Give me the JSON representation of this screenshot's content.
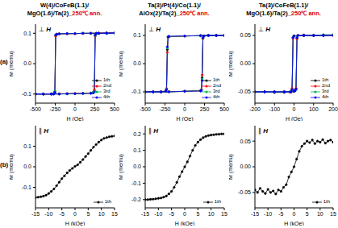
{
  "chart_data": [
    {
      "type": "line",
      "title": "W(4)/CoFeB(1.1)/\nMgO(1.6)/Ta(2)_250℃ ann.",
      "annotations": [
        "(a)",
        "⊥ H"
      ],
      "x_label": "H (Oe)",
      "y_label": "M (memu)",
      "x": [
        -500,
        -400,
        -300,
        -200,
        -100,
        0,
        100,
        200,
        230,
        245,
        255,
        270,
        300,
        400,
        500,
        400,
        300,
        200,
        100,
        0,
        -100,
        -200,
        -230,
        -245,
        -255,
        -270,
        -300,
        -400,
        -500
      ],
      "series": [
        {
          "name": "1th",
          "color": "#000000",
          "marker": "circle",
          "line_style": "solid",
          "values": [
            -0.1,
            -0.1,
            -0.1,
            -0.1,
            -0.099,
            -0.099,
            -0.098,
            -0.097,
            -0.096,
            -0.09,
            0.095,
            0.1,
            0.1,
            0.101,
            0.101,
            0.101,
            0.1,
            0.1,
            0.1,
            0.099,
            0.099,
            0.098,
            0.097,
            0.093,
            -0.095,
            -0.1,
            -0.1,
            -0.1,
            -0.1
          ]
        },
        {
          "name": "2nd",
          "color": "#ff0000",
          "marker": "circle",
          "line_style": "solid",
          "values": [
            -0.1,
            -0.1,
            -0.1,
            -0.099,
            -0.099,
            -0.098,
            -0.098,
            -0.097,
            -0.095,
            -0.085,
            0.09,
            0.1,
            0.1,
            0.1,
            0.101,
            0.101,
            0.1,
            0.1,
            0.099,
            0.099,
            0.098,
            0.098,
            0.096,
            0.09,
            -0.092,
            -0.1,
            -0.1,
            -0.1,
            -0.1
          ]
        },
        {
          "name": "3rd",
          "color": "#00b050",
          "marker": "circle",
          "line_style": "solid",
          "values": [
            -0.1,
            -0.1,
            -0.1,
            -0.1,
            -0.1,
            -0.099,
            -0.098,
            -0.097,
            -0.096,
            -0.092,
            0.092,
            0.099,
            0.1,
            0.1,
            0.1,
            0.1,
            0.1,
            0.1,
            0.1,
            0.099,
            0.099,
            0.098,
            0.097,
            0.094,
            -0.09,
            -0.099,
            -0.1,
            -0.1,
            -0.1
          ]
        },
        {
          "name": "4th",
          "color": "#0000ff",
          "marker": "circle",
          "line_style": "solid",
          "values": [
            -0.1,
            -0.1,
            -0.1,
            -0.1,
            -0.099,
            -0.099,
            -0.098,
            -0.098,
            -0.096,
            -0.093,
            0.094,
            0.1,
            0.1,
            0.1,
            0.101,
            0.1,
            0.1,
            0.1,
            0.1,
            0.099,
            0.099,
            0.098,
            0.097,
            0.095,
            -0.094,
            -0.1,
            -0.1,
            -0.1,
            -0.1
          ]
        }
      ],
      "xlim": [
        -500,
        500
      ],
      "xticks": [
        -500,
        -250,
        0,
        250,
        500
      ],
      "ylim": [
        -0.13,
        0.13
      ],
      "yticks": [
        -0.1,
        {
          "value": 0,
          "label": "0.0"
        },
        0.1
      ],
      "legend": "lower right"
    },
    {
      "type": "line",
      "title": "Ta(3)/Pt(4)/Co(1.1)/\nAlOx(2)/Ta(2)_250℃ ann.",
      "annotations": [
        "⊥ H"
      ],
      "x_label": "H (Oe)",
      "y_label": "M (memu)",
      "x": [
        -500,
        -400,
        -300,
        -200,
        0,
        200,
        210,
        220,
        230,
        240,
        300,
        400,
        500,
        400,
        300,
        200,
        0,
        -200,
        -210,
        -220,
        -230,
        -240,
        -300,
        -400,
        -500
      ],
      "series": [
        {
          "name": "1th",
          "color": "#000000",
          "marker": "circle",
          "line_style": "solid",
          "values": [
            -0.1,
            -0.1,
            -0.1,
            -0.1,
            -0.098,
            -0.096,
            -0.094,
            -0.05,
            0.09,
            0.097,
            0.1,
            0.1,
            0.1,
            0.1,
            0.1,
            0.099,
            0.098,
            0.096,
            0.094,
            0.05,
            -0.09,
            -0.097,
            -0.1,
            -0.1,
            -0.1
          ]
        },
        {
          "name": "2nd",
          "color": "#ff0000",
          "marker": "circle",
          "line_style": "solid",
          "values": [
            -0.1,
            -0.1,
            -0.1,
            -0.099,
            -0.098,
            -0.096,
            -0.093,
            -0.04,
            0.088,
            0.097,
            0.1,
            0.1,
            0.1,
            0.1,
            0.1,
            0.099,
            0.098,
            0.095,
            0.093,
            0.04,
            -0.088,
            -0.097,
            -0.1,
            -0.1,
            -0.1
          ]
        },
        {
          "name": "3rd",
          "color": "#00b050",
          "marker": "circle",
          "line_style": "solid",
          "values": [
            -0.1,
            -0.1,
            -0.1,
            -0.1,
            -0.098,
            -0.096,
            -0.094,
            -0.055,
            0.09,
            0.097,
            0.1,
            0.1,
            0.1,
            0.1,
            0.1,
            0.099,
            0.098,
            0.096,
            0.094,
            0.055,
            -0.09,
            -0.097,
            -0.1,
            -0.1,
            -0.1
          ]
        },
        {
          "name": "4th",
          "color": "#0000ff",
          "marker": "circle",
          "line_style": "solid",
          "values": [
            -0.1,
            -0.1,
            -0.1,
            -0.1,
            -0.098,
            -0.097,
            -0.095,
            -0.06,
            0.092,
            0.098,
            0.1,
            0.1,
            0.1,
            0.1,
            0.1,
            0.1,
            0.098,
            0.097,
            0.095,
            0.06,
            -0.092,
            -0.098,
            -0.1,
            -0.1,
            -0.1
          ]
        }
      ],
      "xlim": [
        -500,
        500
      ],
      "xticks": [
        -500,
        -250,
        0,
        250,
        500
      ],
      "ylim": [
        -0.14,
        0.14
      ],
      "yticks": [
        -0.1,
        {
          "value": 0,
          "label": "0.0"
        },
        0.1
      ],
      "legend": "lower right"
    },
    {
      "type": "line",
      "title": "Ta(3)/CoFeB(1.1)/\nMgO(1.6)/Ta(2)_250℃ ann.",
      "annotations": [
        "⊥ H"
      ],
      "x_label": "H (Oe)",
      "y_label": "M (memu)",
      "x": [
        -200,
        -150,
        -100,
        -50,
        0,
        5,
        10,
        15,
        20,
        50,
        100,
        150,
        200,
        150,
        100,
        50,
        0,
        -5,
        -10,
        -15,
        -20,
        -50,
        -100,
        -150,
        -200
      ],
      "series": [
        {
          "name": "1th",
          "color": "#000000",
          "marker": "circle",
          "line_style": "solid",
          "values": [
            -0.05,
            -0.05,
            -0.05,
            -0.05,
            -0.049,
            -0.048,
            -0.045,
            0.045,
            0.05,
            0.05,
            0.05,
            0.05,
            0.051,
            0.051,
            0.05,
            0.05,
            0.049,
            0.046,
            -0.045,
            -0.05,
            -0.05,
            -0.051,
            -0.051,
            -0.05,
            -0.05
          ]
        },
        {
          "name": "2nd",
          "color": "#ff0000",
          "marker": "circle",
          "line_style": "solid",
          "values": [
            -0.05,
            -0.05,
            -0.051,
            -0.05,
            -0.049,
            -0.047,
            -0.044,
            0.044,
            0.05,
            0.051,
            0.05,
            0.05,
            0.05,
            0.05,
            0.05,
            0.05,
            0.049,
            0.045,
            -0.044,
            -0.05,
            -0.051,
            -0.05,
            -0.05,
            -0.05,
            -0.05
          ]
        },
        {
          "name": "3rd",
          "color": "#00b050",
          "marker": "circle",
          "line_style": "solid",
          "values": [
            -0.05,
            -0.05,
            -0.05,
            -0.05,
            -0.049,
            -0.048,
            -0.046,
            0.046,
            0.05,
            0.05,
            0.05,
            0.051,
            0.051,
            0.05,
            0.05,
            0.05,
            0.049,
            0.047,
            -0.046,
            -0.05,
            -0.05,
            -0.05,
            -0.051,
            -0.05,
            -0.05
          ]
        },
        {
          "name": "4th",
          "color": "#0000ff",
          "marker": "circle",
          "line_style": "solid",
          "values": [
            -0.05,
            -0.05,
            -0.05,
            -0.05,
            -0.049,
            -0.048,
            -0.045,
            0.046,
            0.05,
            0.05,
            0.05,
            0.05,
            0.05,
            0.05,
            0.05,
            0.05,
            0.049,
            0.046,
            -0.046,
            -0.05,
            -0.05,
            -0.05,
            -0.05,
            -0.05,
            -0.05
          ]
        }
      ],
      "xlim": [
        -200,
        200
      ],
      "xticks": [
        -200,
        -100,
        0,
        100,
        200
      ],
      "ylim": [
        -0.07,
        0.07
      ],
      "yticks": [
        -0.05,
        {
          "value": 0,
          "label": "0.00"
        },
        0.05
      ],
      "legend": "lower right"
    },
    {
      "type": "line",
      "annotations": [
        "(b)",
        "∥ H"
      ],
      "x_label": "H (kOe)",
      "y_label": "M (memu)",
      "x": [
        -15,
        -14,
        -13,
        -12,
        -11,
        -10,
        -9,
        -8,
        -7,
        -6,
        -5,
        -4,
        -3,
        -2,
        -1,
        0,
        1,
        2,
        3,
        4,
        5,
        6,
        7,
        8,
        9,
        10,
        11,
        12,
        13,
        14,
        15
      ],
      "series": [
        {
          "name": "1th",
          "color": "#000000",
          "marker": "circle",
          "line_style": "solid",
          "values": [
            -0.15,
            -0.148,
            -0.146,
            -0.143,
            -0.138,
            -0.13,
            -0.12,
            -0.108,
            -0.092,
            -0.075,
            -0.058,
            -0.044,
            -0.03,
            -0.018,
            -0.008,
            0.002,
            0.01,
            0.022,
            0.035,
            0.05,
            0.064,
            0.08,
            0.095,
            0.108,
            0.12,
            0.13,
            0.138,
            0.142,
            0.146,
            0.148,
            0.15
          ]
        }
      ],
      "xlim": [
        -15,
        15
      ],
      "xticks": [
        -15,
        -10,
        -5,
        0,
        5,
        10,
        15
      ],
      "ylim": [
        -0.2,
        0.2
      ],
      "yticks": [
        -0.1,
        {
          "value": 0,
          "label": "0.0"
        },
        0.1
      ],
      "legend": "lower right"
    },
    {
      "type": "line",
      "annotations": [
        "∥ H"
      ],
      "x_label": "H (kOe)",
      "y_label": "M (memu)",
      "x": [
        -15,
        -14,
        -13,
        -12,
        -11,
        -10,
        -9,
        -8,
        -7,
        -6,
        -5,
        -4,
        -3,
        -2,
        -1,
        0,
        1,
        2,
        3,
        4,
        5,
        6,
        7,
        8,
        9,
        10,
        11,
        12,
        13,
        14,
        15
      ],
      "series": [
        {
          "name": "1th",
          "color": "#000000",
          "marker": "circle",
          "line_style": "solid",
          "values": [
            -0.2,
            -0.2,
            -0.198,
            -0.197,
            -0.195,
            -0.192,
            -0.19,
            -0.185,
            -0.178,
            -0.165,
            -0.15,
            -0.125,
            -0.095,
            -0.06,
            -0.03,
            0,
            0.03,
            0.065,
            0.1,
            0.13,
            0.15,
            0.165,
            0.177,
            0.185,
            0.19,
            0.193,
            0.195,
            0.197,
            0.198,
            0.2,
            0.2
          ]
        }
      ],
      "xlim": [
        -15,
        15
      ],
      "xticks": [
        -15,
        -10,
        -5,
        0,
        5,
        10,
        15
      ],
      "ylim": [
        -0.25,
        0.25
      ],
      "yticks": [
        -0.2,
        -0.1,
        {
          "value": 0,
          "label": "0.0"
        },
        0.1,
        0.2
      ],
      "legend": "lower right"
    },
    {
      "type": "line",
      "annotations": [
        "∥ H"
      ],
      "x_label": "H (kOe)",
      "y_label": "M (memu)",
      "x": [
        -15,
        -14,
        -13,
        -12,
        -11,
        -10,
        -9,
        -8,
        -7,
        -6,
        -5,
        -4,
        -3,
        -2,
        -1,
        0,
        1,
        2,
        3,
        4,
        5,
        6,
        7,
        8,
        9,
        10,
        11,
        12,
        13,
        14,
        15
      ],
      "series": [
        {
          "name": "1th",
          "color": "#000000",
          "marker": "circle",
          "line_style": "solid",
          "values": [
            -0.045,
            -0.05,
            -0.042,
            -0.048,
            -0.052,
            -0.044,
            -0.05,
            -0.047,
            -0.053,
            -0.045,
            -0.048,
            -0.04,
            -0.035,
            -0.02,
            -0.01,
            0,
            0.015,
            0.03,
            0.04,
            0.045,
            0.05,
            0.047,
            0.052,
            0.045,
            0.05,
            0.048,
            0.053,
            0.046,
            0.05,
            0.052,
            0.048
          ]
        }
      ],
      "xlim": [
        -15,
        15
      ],
      "xticks": [
        -15,
        -10,
        -5,
        0,
        5,
        10,
        15
      ],
      "ylim": [
        -0.08,
        0.08
      ],
      "yticks": [
        -0.05,
        {
          "value": 0,
          "label": "0.00"
        },
        0.05
      ],
      "legend": "lower right"
    }
  ]
}
